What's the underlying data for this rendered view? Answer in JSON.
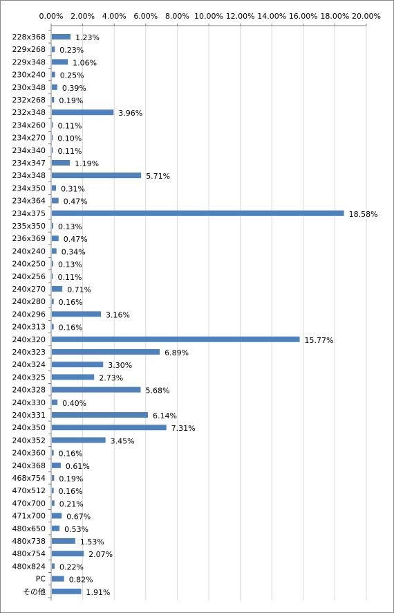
{
  "chart_data": {
    "type": "bar",
    "orientation": "horizontal",
    "title": "",
    "xlabel": "",
    "ylabel": "",
    "xlim": [
      0,
      20
    ],
    "x_ticks": [
      "0.00%",
      "2.00%",
      "4.00%",
      "6.00%",
      "8.00%",
      "10.00%",
      "12.00%",
      "14.00%",
      "16.00%",
      "18.00%",
      "20.00%"
    ],
    "x_axis_position": "top",
    "grid": true,
    "legend": "none",
    "bar_color": "#4f81bd",
    "grid_color": "#d9d9d9",
    "categories": [
      "228x368",
      "229x268",
      "229x348",
      "230x240",
      "230x348",
      "232x268",
      "232x348",
      "234x260",
      "234x270",
      "234x340",
      "234x347",
      "234x348",
      "234x350",
      "234x364",
      "234x375",
      "235x350",
      "236x369",
      "240x240",
      "240x250",
      "240x256",
      "240x270",
      "240x280",
      "240x296",
      "240x313",
      "240x320",
      "240x323",
      "240x324",
      "240x325",
      "240x328",
      "240x330",
      "240x331",
      "240x350",
      "240x352",
      "240x360",
      "240x368",
      "468x754",
      "470x512",
      "470x700",
      "471x700",
      "480x650",
      "480x738",
      "480x754",
      "480x824",
      "PC",
      "その他"
    ],
    "values": [
      1.23,
      0.23,
      1.06,
      0.25,
      0.39,
      0.19,
      3.96,
      0.11,
      0.1,
      0.11,
      1.19,
      5.71,
      0.31,
      0.47,
      18.58,
      0.13,
      0.47,
      0.34,
      0.13,
      0.11,
      0.71,
      0.16,
      3.16,
      0.16,
      15.77,
      6.89,
      3.3,
      2.73,
      5.68,
      0.4,
      6.14,
      7.31,
      3.45,
      0.16,
      0.61,
      0.19,
      0.16,
      0.21,
      0.67,
      0.53,
      1.53,
      2.07,
      0.22,
      0.82,
      1.91
    ],
    "data_labels": [
      "1.23%",
      "0.23%",
      "1.06%",
      "0.25%",
      "0.39%",
      "0.19%",
      "3.96%",
      "0.11%",
      "0.10%",
      "0.11%",
      "1.19%",
      "5.71%",
      "0.31%",
      "0.47%",
      "18.58%",
      "0.13%",
      "0.47%",
      "0.34%",
      "0.13%",
      "0.11%",
      "0.71%",
      "0.16%",
      "3.16%",
      "0.16%",
      "15.77%",
      "6.89%",
      "3.30%",
      "2.73%",
      "5.68%",
      "0.40%",
      "6.14%",
      "7.31%",
      "3.45%",
      "0.16%",
      "0.61%",
      "0.19%",
      "0.16%",
      "0.21%",
      "0.67%",
      "0.53%",
      "1.53%",
      "2.07%",
      "0.22%",
      "0.82%",
      "1.91%"
    ]
  }
}
